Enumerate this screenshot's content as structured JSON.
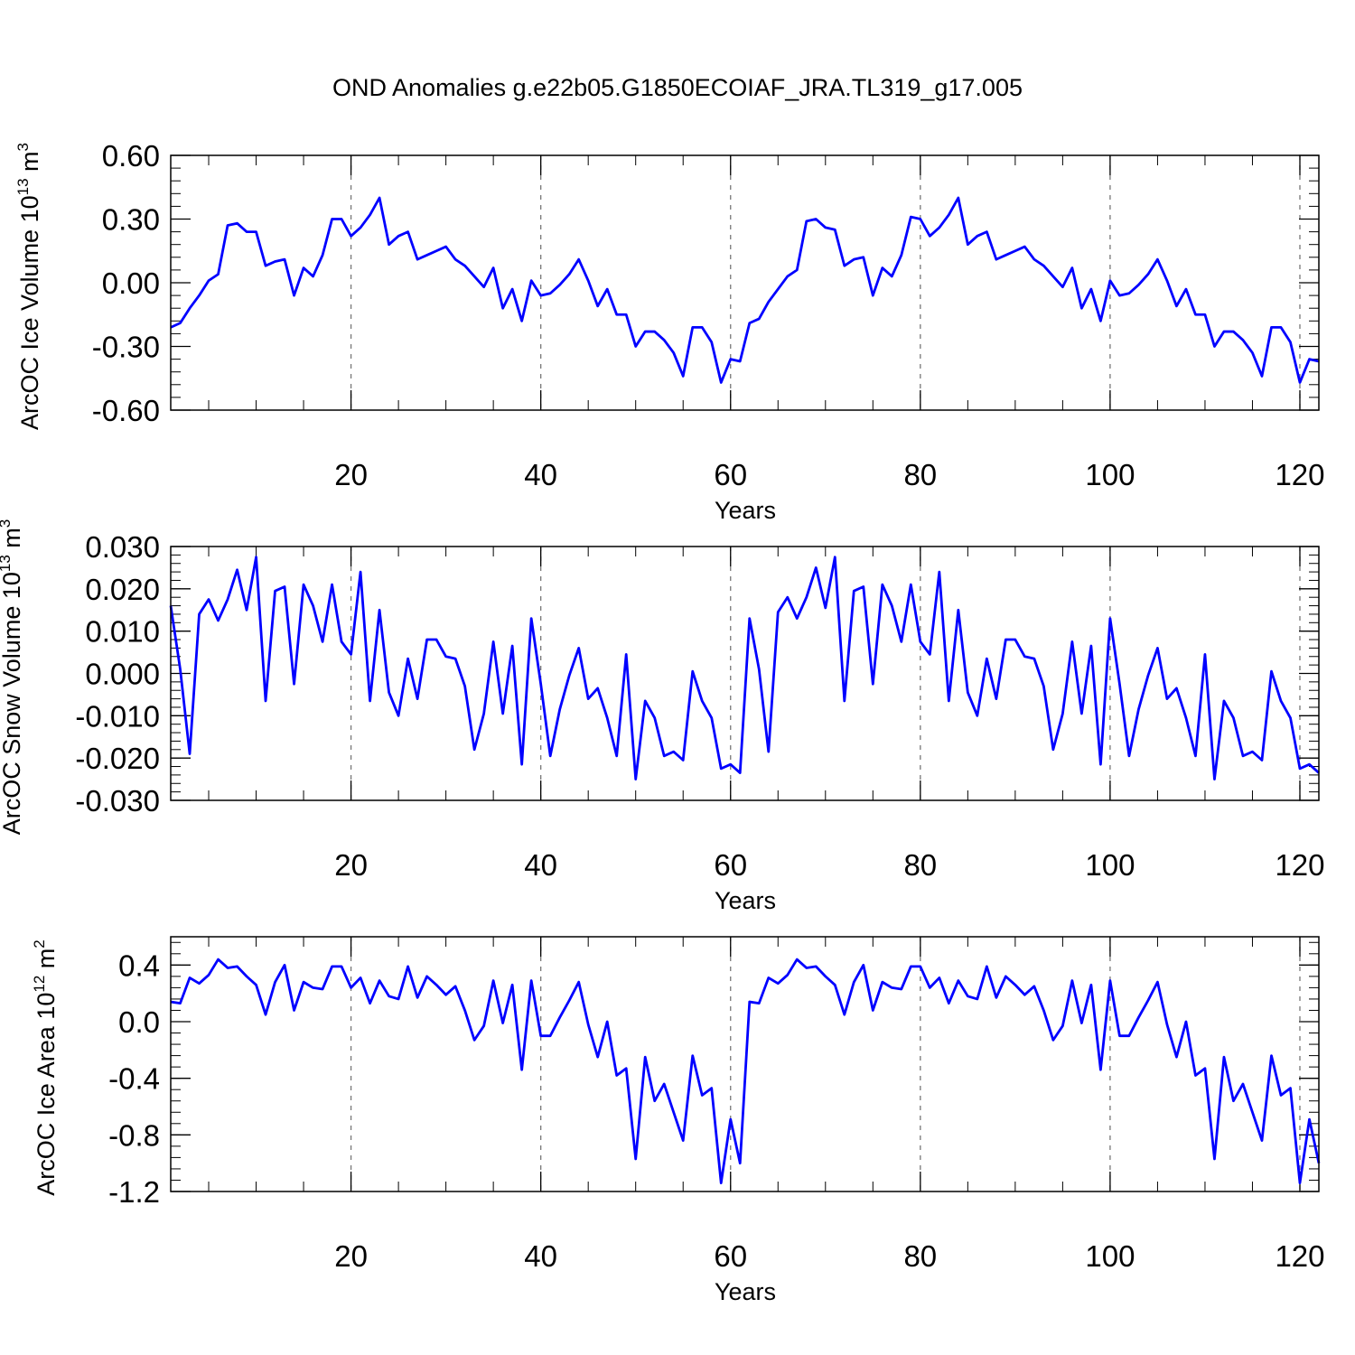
{
  "figure": {
    "title": "OND Anomalies g.e22b05.G1850ECOIAF_JRA.TL319_g17.005",
    "line_color": "#0000ff"
  },
  "chart_data": [
    {
      "type": "line",
      "xlabel": "Years",
      "ylabel": "ArcOC Ice Volume 10",
      "ylabel_exp": "13",
      "ylabel_unit": " m",
      "ylabel_unit_exp": "3",
      "xlim": [
        1,
        122
      ],
      "ylim": [
        -0.6,
        0.6
      ],
      "xticks": [
        20,
        40,
        60,
        80,
        100,
        120
      ],
      "yticks": [
        -0.6,
        -0.3,
        0.0,
        0.3,
        0.6
      ],
      "ytick_labels": [
        "-0.60",
        "-0.30",
        "0.00",
        "0.30",
        "0.60"
      ],
      "yminor_step": 0.06,
      "grid_x": true,
      "x_start": 1,
      "series": [
        {
          "name": "ArcOC Ice Volume",
          "values": [
            -0.21,
            -0.19,
            -0.12,
            -0.06,
            0.01,
            0.04,
            0.27,
            0.28,
            0.24,
            0.24,
            0.08,
            0.1,
            0.11,
            -0.06,
            0.07,
            0.03,
            0.13,
            0.3,
            0.3,
            0.22,
            0.26,
            0.32,
            0.4,
            0.18,
            0.22,
            0.24,
            0.11,
            0.13,
            0.15,
            0.17,
            0.11,
            0.08,
            0.03,
            -0.02,
            0.07,
            -0.12,
            -0.03,
            -0.18,
            0.01,
            -0.06,
            -0.05,
            -0.01,
            0.04,
            0.11,
            0.01,
            -0.11,
            -0.03,
            -0.15,
            -0.15,
            -0.3,
            -0.23,
            -0.23,
            -0.27,
            -0.33,
            -0.44,
            -0.21,
            -0.21,
            -0.28,
            -0.47,
            -0.36,
            -0.37,
            -0.19,
            -0.17,
            -0.09,
            -0.03,
            0.03,
            0.06,
            0.29,
            0.3,
            0.26,
            0.25,
            0.08,
            0.11,
            0.12,
            -0.06,
            0.07,
            0.03,
            0.13,
            0.31,
            0.3,
            0.22,
            0.26,
            0.32,
            0.4,
            0.18,
            0.22,
            0.24,
            0.11,
            0.13,
            0.15,
            0.17,
            0.11,
            0.08,
            0.03,
            -0.02,
            0.07,
            -0.12,
            -0.03,
            -0.18,
            0.01,
            -0.06,
            -0.05,
            -0.01,
            0.04,
            0.11,
            0.01,
            -0.11,
            -0.03,
            -0.15,
            -0.15,
            -0.3,
            -0.23,
            -0.23,
            -0.27,
            -0.33,
            -0.44,
            -0.21,
            -0.21,
            -0.28,
            -0.47,
            -0.36,
            -0.37
          ]
        }
      ]
    },
    {
      "type": "line",
      "xlabel": "Years",
      "ylabel": "ArcOC Snow Volume 10",
      "ylabel_exp": "13",
      "ylabel_unit": " m",
      "ylabel_unit_exp": "3",
      "xlim": [
        1,
        122
      ],
      "ylim": [
        -0.03,
        0.03
      ],
      "xticks": [
        20,
        40,
        60,
        80,
        100,
        120
      ],
      "yticks": [
        -0.03,
        -0.02,
        -0.01,
        0.0,
        0.01,
        0.02,
        0.03
      ],
      "ytick_labels": [
        "-0.030",
        "-0.020",
        "-0.010",
        "0.000",
        "0.010",
        "0.020",
        "0.030"
      ],
      "yminor_step": 0.002,
      "grid_x": true,
      "x_start": 1,
      "series": [
        {
          "name": "ArcOC Snow Volume",
          "values": [
            0.016,
            0.001,
            -0.019,
            0.014,
            0.0175,
            0.0125,
            0.0175,
            0.0245,
            0.015,
            0.0275,
            -0.0065,
            0.0195,
            0.0205,
            -0.0025,
            0.021,
            0.016,
            0.0075,
            0.021,
            0.0075,
            0.0045,
            0.024,
            -0.0065,
            0.015,
            -0.0045,
            -0.01,
            0.0035,
            -0.006,
            0.008,
            0.008,
            0.004,
            0.0035,
            -0.003,
            -0.018,
            -0.0095,
            0.0075,
            -0.0095,
            0.0065,
            -0.0215,
            0.013,
            -0.0025,
            -0.0195,
            -0.0085,
            -0.0005,
            0.006,
            -0.006,
            -0.0035,
            -0.0105,
            -0.0195,
            0.0045,
            -0.025,
            -0.0065,
            -0.0105,
            -0.0195,
            -0.0185,
            -0.0205,
            0.0005,
            -0.0065,
            -0.0105,
            -0.0225,
            -0.0215,
            -0.0235,
            0.013,
            0.001,
            -0.0185,
            0.0145,
            0.018,
            0.013,
            0.018,
            0.025,
            0.0155,
            0.0275,
            -0.0065,
            0.0195,
            0.0205,
            -0.0025,
            0.021,
            0.016,
            0.0075,
            0.021,
            0.0075,
            0.0045,
            0.024,
            -0.0065,
            0.015,
            -0.0045,
            -0.01,
            0.0035,
            -0.006,
            0.008,
            0.008,
            0.004,
            0.0035,
            -0.003,
            -0.018,
            -0.0095,
            0.0075,
            -0.0095,
            0.0065,
            -0.0215,
            0.013,
            -0.0025,
            -0.0195,
            -0.0085,
            -0.0005,
            0.006,
            -0.006,
            -0.0035,
            -0.0105,
            -0.0195,
            0.0045,
            -0.025,
            -0.0065,
            -0.0105,
            -0.0195,
            -0.0185,
            -0.0205,
            0.0005,
            -0.0065,
            -0.0105,
            -0.0225,
            -0.0215,
            -0.0235
          ]
        }
      ]
    },
    {
      "type": "line",
      "xlabel": "Years",
      "ylabel": "ArcOC Ice Area 10",
      "ylabel_exp": "12",
      "ylabel_unit": " m",
      "ylabel_unit_exp": "2",
      "xlim": [
        1,
        122
      ],
      "ylim": [
        -1.2,
        0.6
      ],
      "xticks": [
        20,
        40,
        60,
        80,
        100,
        120
      ],
      "yticks": [
        -1.2,
        -0.8,
        -0.4,
        0.0,
        0.4
      ],
      "ytick_labels": [
        "-1.2",
        "-0.8",
        "-0.4",
        "0.0",
        "0.4"
      ],
      "yminor_step": 0.08,
      "grid_x": true,
      "x_start": 1,
      "series": [
        {
          "name": "ArcOC Ice Area",
          "values": [
            0.14,
            0.13,
            0.31,
            0.27,
            0.33,
            0.44,
            0.38,
            0.39,
            0.32,
            0.26,
            0.05,
            0.28,
            0.4,
            0.08,
            0.28,
            0.24,
            0.23,
            0.39,
            0.39,
            0.24,
            0.31,
            0.13,
            0.29,
            0.18,
            0.16,
            0.39,
            0.17,
            0.32,
            0.26,
            0.19,
            0.25,
            0.08,
            -0.13,
            -0.03,
            0.29,
            -0.01,
            0.26,
            -0.34,
            0.29,
            -0.1,
            -0.1,
            0.03,
            0.15,
            0.28,
            -0.02,
            -0.25,
            0.0,
            -0.38,
            -0.33,
            -0.97,
            -0.25,
            -0.56,
            -0.44,
            -0.64,
            -0.84,
            -0.24,
            -0.52,
            -0.47,
            -1.14,
            -0.69,
            -1.0,
            0.14,
            0.13,
            0.31,
            0.27,
            0.33,
            0.44,
            0.38,
            0.39,
            0.32,
            0.26,
            0.05,
            0.28,
            0.4,
            0.08,
            0.28,
            0.24,
            0.23,
            0.39,
            0.39,
            0.24,
            0.31,
            0.13,
            0.29,
            0.18,
            0.16,
            0.39,
            0.17,
            0.32,
            0.26,
            0.19,
            0.25,
            0.08,
            -0.13,
            -0.03,
            0.29,
            -0.01,
            0.26,
            -0.34,
            0.29,
            -0.1,
            -0.1,
            0.03,
            0.15,
            0.28,
            -0.02,
            -0.25,
            0.0,
            -0.38,
            -0.33,
            -0.97,
            -0.25,
            -0.56,
            -0.44,
            -0.64,
            -0.84,
            -0.24,
            -0.52,
            -0.47,
            -1.14,
            -0.69,
            -1.0
          ]
        }
      ]
    }
  ]
}
